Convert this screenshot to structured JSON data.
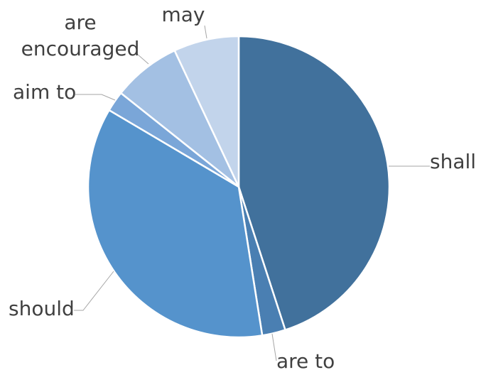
{
  "chart_data": {
    "type": "pie",
    "title": "",
    "start": "12 o'clock",
    "direction": "clockwise",
    "legend": "none",
    "slices": [
      {
        "label": "shall",
        "value": 45.0,
        "color": "#41719c"
      },
      {
        "label": "are to",
        "value": 2.5,
        "color": "#4a7fb2"
      },
      {
        "label": "should",
        "value": 36.0,
        "color": "#5593cc"
      },
      {
        "label": "aim to",
        "value": 2.2,
        "color": "#7aa6d8"
      },
      {
        "label": "are encouraged",
        "value": 7.3,
        "color": "#a3c0e3"
      },
      {
        "label": "may",
        "value": 7.0,
        "color": "#c2d4eb"
      }
    ]
  }
}
